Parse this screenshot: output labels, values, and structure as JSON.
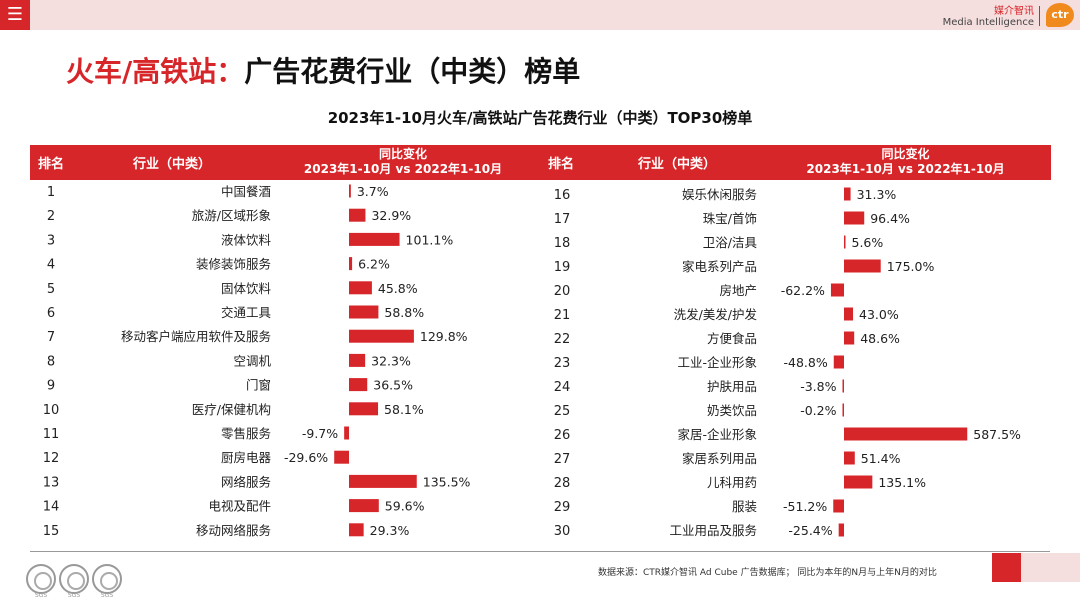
{
  "header": {
    "menu_icon": "hamburger-icon",
    "brand_cn": "媒介智讯",
    "brand_en": "Media Intelligence",
    "logo_text": "ctr"
  },
  "page_title_red": "火车/高铁站：",
  "page_title_black": "广告花费行业（中类）榜单",
  "colors": {
    "accent": "#d7262a",
    "bar": "#d7262a",
    "pink": "#f5dede"
  },
  "chart_data": {
    "type": "bar",
    "orientation": "horizontal",
    "title": "2023年1-10月火车/高铁站广告花费行业（中类）TOP30榜单",
    "columns": {
      "rank": "排名",
      "industry": "行业（中类）",
      "change_line1": "同比变化",
      "change_line2": "2023年1-10月 vs 2022年1-10月"
    },
    "unit": "%",
    "rows": [
      {
        "rank": "1",
        "industry": "中国餐酒",
        "value": 3.7,
        "label": "3.7%"
      },
      {
        "rank": "2",
        "industry": "旅游/区域形象",
        "value": 32.9,
        "label": "32.9%"
      },
      {
        "rank": "3",
        "industry": "液体饮料",
        "value": 101.1,
        "label": "101.1%"
      },
      {
        "rank": "4",
        "industry": "装修装饰服务",
        "value": 6.2,
        "label": "6.2%"
      },
      {
        "rank": "5",
        "industry": "固体饮料",
        "value": 45.8,
        "label": "45.8%"
      },
      {
        "rank": "6",
        "industry": "交通工具",
        "value": 58.8,
        "label": "58.8%"
      },
      {
        "rank": "7",
        "industry": "移动客户端应用软件及服务",
        "value": 129.8,
        "label": "129.8%"
      },
      {
        "rank": "8",
        "industry": "空调机",
        "value": 32.3,
        "label": "32.3%"
      },
      {
        "rank": "9",
        "industry": "门窗",
        "value": 36.5,
        "label": "36.5%"
      },
      {
        "rank": "10",
        "industry": "医疗/保健机构",
        "value": 58.1,
        "label": "58.1%"
      },
      {
        "rank": "11",
        "industry": "零售服务",
        "value": -9.7,
        "label": "-9.7%"
      },
      {
        "rank": "12",
        "industry": "厨房电器",
        "value": -29.6,
        "label": "-29.6%"
      },
      {
        "rank": "13",
        "industry": "网络服务",
        "value": 135.5,
        "label": "135.5%"
      },
      {
        "rank": "14",
        "industry": "电视及配件",
        "value": 59.6,
        "label": "59.6%"
      },
      {
        "rank": "15",
        "industry": "移动网络服务",
        "value": 29.3,
        "label": "29.3%"
      },
      {
        "rank": "16",
        "industry": "娱乐休闲服务",
        "value": 31.3,
        "label": "31.3%"
      },
      {
        "rank": "17",
        "industry": "珠宝/首饰",
        "value": 96.4,
        "label": "96.4%"
      },
      {
        "rank": "18",
        "industry": "卫浴/洁具",
        "value": 5.6,
        "label": "5.6%"
      },
      {
        "rank": "19",
        "industry": "家电系列产品",
        "value": 175.0,
        "label": "175.0%"
      },
      {
        "rank": "20",
        "industry": "房地产",
        "value": -62.2,
        "label": "-62.2%"
      },
      {
        "rank": "21",
        "industry": "洗发/美发/护发",
        "value": 43.0,
        "label": "43.0%"
      },
      {
        "rank": "22",
        "industry": "方便食品",
        "value": 48.6,
        "label": "48.6%"
      },
      {
        "rank": "23",
        "industry": "工业-企业形象",
        "value": -48.8,
        "label": "-48.8%"
      },
      {
        "rank": "24",
        "industry": "护肤用品",
        "value": -3.8,
        "label": "-3.8%"
      },
      {
        "rank": "25",
        "industry": "奶类饮品",
        "value": -0.2,
        "label": "-0.2%"
      },
      {
        "rank": "26",
        "industry": "家居-企业形象",
        "value": 587.5,
        "label": "587.5%"
      },
      {
        "rank": "27",
        "industry": "家居系列用品",
        "value": 51.4,
        "label": "51.4%"
      },
      {
        "rank": "28",
        "industry": "儿科用药",
        "value": 135.1,
        "label": "135.1%"
      },
      {
        "rank": "29",
        "industry": "服装",
        "value": -51.2,
        "label": "-51.2%"
      },
      {
        "rank": "30",
        "industry": "工业用品及服务",
        "value": -25.4,
        "label": "-25.4%"
      }
    ]
  },
  "footer": {
    "source": "数据来源：CTR媒介智讯 Ad Cube 广告数据库；  同比为本年的N月与上年N月的对比",
    "seal_label": "SGS",
    "seal_icon": "certification-seal-icon"
  }
}
